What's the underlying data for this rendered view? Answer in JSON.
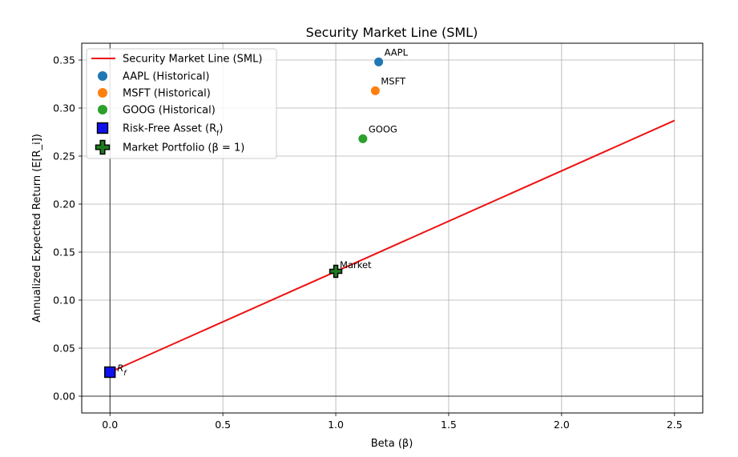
{
  "chart_data": {
    "type": "scatter",
    "title": "Security Market Line (SML)",
    "xlabel": "Beta (β)",
    "ylabel": "Annualized Expected Return (E[R_i])",
    "xlim": [
      -0.125,
      2.625
    ],
    "ylim": [
      -0.0175,
      0.3675
    ],
    "x_ticks": [
      "0.0",
      "0.5",
      "1.0",
      "1.5",
      "2.0",
      "2.5"
    ],
    "y_ticks": [
      "0.00",
      "0.05",
      "0.10",
      "0.15",
      "0.20",
      "0.25",
      "0.30",
      "0.35"
    ],
    "grid": true,
    "legend_position": "top-left",
    "sml": {
      "name": "Security Market Line (SML)",
      "color": "#ee1111",
      "x": [
        0,
        2.5
      ],
      "y": [
        0.025,
        0.287
      ]
    },
    "assets": [
      {
        "name": "AAPL (Historical)",
        "label": "AAPL",
        "x": 1.19,
        "y": 0.348,
        "color": "#1f77b4"
      },
      {
        "name": "MSFT (Historical)",
        "label": "MSFT",
        "x": 1.175,
        "y": 0.318,
        "color": "#ff7f0e"
      },
      {
        "name": "GOOG (Historical)",
        "label": "GOOG",
        "x": 1.12,
        "y": 0.268,
        "color": "#2ca02c"
      }
    ],
    "risk_free": {
      "name": "Risk-Free Asset (R_f)",
      "label": "R_f",
      "x": 0,
      "y": 0.025,
      "color": "#1010ee"
    },
    "market": {
      "name": "Market Portfolio (β = 1)",
      "label": "Market",
      "x": 1,
      "y": 0.13,
      "color": "#1f7a1f"
    }
  }
}
